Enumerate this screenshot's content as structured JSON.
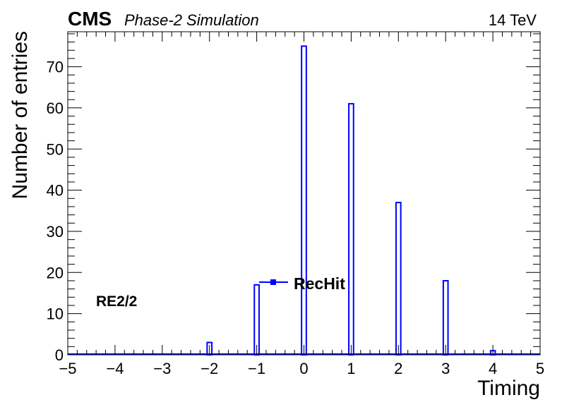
{
  "header": {
    "experiment": "CMS",
    "status": "Phase-2 Simulation",
    "energy": "14 TeV"
  },
  "colors": {
    "hist": "#0000ff",
    "axis": "#000000"
  },
  "chart_data": {
    "type": "bar",
    "title": "",
    "xlabel": "Timing",
    "ylabel": "Number of entries",
    "xlim": [
      -5,
      5
    ],
    "ylim": [
      0,
      78.5
    ],
    "x_ticks": [
      -5,
      -4,
      -3,
      -2,
      -1,
      0,
      1,
      2,
      3,
      4,
      5
    ],
    "x_tick_labels": [
      "−5",
      "−4",
      "−3",
      "−2",
      "−1",
      "0",
      "1",
      "2",
      "3",
      "4",
      "5"
    ],
    "y_ticks": [
      0,
      10,
      20,
      30,
      40,
      50,
      60,
      70
    ],
    "y_tick_labels": [
      "0",
      "10",
      "20",
      "30",
      "40",
      "50",
      "60",
      "70"
    ],
    "bin_width": 0.1,
    "bins": [
      {
        "x": -2.0,
        "value": 3
      },
      {
        "x": -1.0,
        "value": 17
      },
      {
        "x": 0.0,
        "value": 75
      },
      {
        "x": 1.0,
        "value": 61
      },
      {
        "x": 2.0,
        "value": 37
      },
      {
        "x": 3.0,
        "value": 18
      },
      {
        "x": 4.0,
        "value": 1
      }
    ],
    "legend": {
      "position": "center-left",
      "entries": [
        "RecHit"
      ]
    },
    "annotation": "RE2/2",
    "grid": false
  }
}
